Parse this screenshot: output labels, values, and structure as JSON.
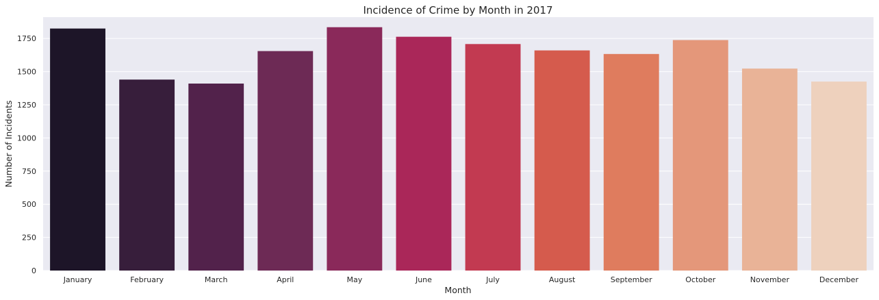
{
  "chart_data": {
    "type": "bar",
    "title": "Incidence of Crime by Month in 2017",
    "xlabel": "Month",
    "ylabel": "Number of Incidents",
    "categories": [
      "January",
      "February",
      "March",
      "April",
      "May",
      "June",
      "July",
      "August",
      "September",
      "October",
      "November",
      "December"
    ],
    "values": [
      1825,
      1440,
      1410,
      1655,
      1835,
      1763,
      1708,
      1660,
      1633,
      1738,
      1523,
      1425
    ],
    "ylim": [
      0,
      1911
    ],
    "yticks": [
      0,
      250,
      500,
      750,
      1000,
      1250,
      1500,
      1750
    ],
    "grid": true,
    "colors": [
      "#1d1528",
      "#371e3b",
      "#52224b",
      "#6d2a55",
      "#8a295a",
      "#aa2759",
      "#c23a51",
      "#d55b4d",
      "#df7c5e",
      "#e4977a",
      "#e9b397",
      "#eed1bd"
    ],
    "background": "#eaeaf2"
  }
}
